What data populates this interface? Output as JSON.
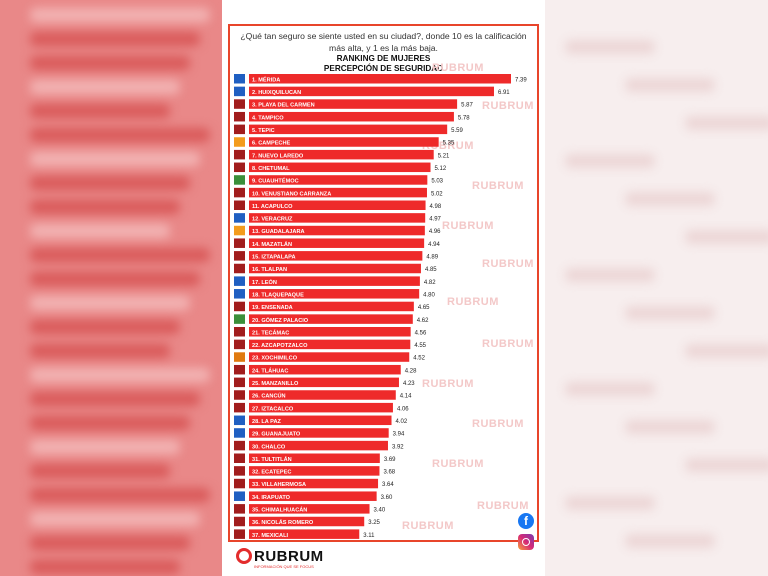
{
  "header": {
    "question": "¿Qué tan seguro se siente usted en su ciudad?, donde 10 es la calificación más alta, y  1 es la más baja."
  },
  "chart_data": {
    "type": "bar",
    "orientation": "horizontal",
    "title": "RANKING DE MUJERES",
    "subtitle": "PERCEPCIÓN DE SEGURIDAD",
    "bar_color": "#ee2a2a",
    "categories": [
      "1. MÉRIDA",
      "2. HUIXQUILUCAN",
      "3. PLAYA DEL CARMEN",
      "4. TAMPICO",
      "5. TEPIC",
      "6. CAMPECHE",
      "7. NUEVO LAREDO",
      "8. CHETUMAL",
      "9. CUAUHTÉMOC",
      "10. VENUSTIANO CARRANZA",
      "11. ACAPULCO",
      "12. VERACRUZ",
      "13. GUADALAJARA",
      "14. MAZATLÁN",
      "15. IZTAPALAPA",
      "16. TLALPAN",
      "17. LEÓN",
      "18. TLAQUEPAQUE",
      "19. ENSENADA",
      "20. GÓMEZ PALACIO",
      "21. TECÁMAC",
      "22. AZCAPOTZALCO",
      "23. XOCHIMILCO",
      "24. TLÁHUAC",
      "25. MANZANILLO",
      "26. CANCÚN",
      "27. IZTACALCO",
      "28. LA PAZ",
      "29. GUANAJUATO",
      "30. CHALCO",
      "31. TULTITLÁN",
      "32. ECATEPEC",
      "33. VILLAHERMOSA",
      "34. IRAPUATO",
      "35. CHIMALHUACÁN",
      "36. NICOLÁS ROMERO",
      "37. MEXICALI"
    ],
    "values": [
      7.39,
      6.91,
      5.87,
      5.78,
      5.59,
      5.35,
      5.21,
      5.12,
      5.03,
      5.02,
      4.98,
      4.97,
      4.96,
      4.94,
      4.89,
      4.85,
      4.82,
      4.8,
      4.65,
      4.62,
      4.56,
      4.55,
      4.52,
      4.28,
      4.23,
      4.14,
      4.06,
      4.02,
      3.94,
      3.92,
      3.69,
      3.68,
      3.64,
      3.6,
      3.4,
      3.25,
      3.11
    ],
    "value_labels": [
      "7.39",
      "6.91",
      "5.87",
      "5.78",
      "5.59",
      "5.35",
      "5.21",
      "5.12",
      "5.03",
      "5.02",
      "4.98",
      "4.97",
      "4.96",
      "4.94",
      "4.89",
      "4.85",
      "4.82",
      "4.80",
      "4.65",
      "4.62",
      "4.56",
      "4.55",
      "4.52",
      "4.28",
      "4.23",
      "4.14",
      "4.06",
      "4.02",
      "3.94",
      "3.92",
      "3.69",
      "3.68",
      "3.64",
      "3.60",
      "3.40",
      "3.25",
      "3.11"
    ],
    "party_icon_colors": [
      "#1f5fc2",
      "#1f5fc2",
      "#a11d1d",
      "#a11d1d",
      "#a11d1d",
      "#f39c1d",
      "#a11d1d",
      "#a11d1d",
      "#3a8f3a",
      "#a11d1d",
      "#a11d1d",
      "#1f5fc2",
      "#f39c1d",
      "#a11d1d",
      "#a11d1d",
      "#a11d1d",
      "#1f5fc2",
      "#1f5fc2",
      "#a11d1d",
      "#3a8f3a",
      "#a11d1d",
      "#a11d1d",
      "#e07a10",
      "#a11d1d",
      "#a11d1d",
      "#a11d1d",
      "#a11d1d",
      "#1f5fc2",
      "#1f5fc2",
      "#a11d1d",
      "#a11d1d",
      "#a11d1d",
      "#a11d1d",
      "#1f5fc2",
      "#a11d1d",
      "#a11d1d",
      "#a11d1d"
    ]
  },
  "watermark": {
    "text": "RUBRUM"
  },
  "social": {
    "facebook_glyph": "f",
    "facebook_icon": "facebook-icon",
    "instagram_icon": "instagram-icon"
  },
  "brand": {
    "name": "RUBRUM",
    "tagline": "INFORMACIÓN QUE SE FOCUS"
  }
}
